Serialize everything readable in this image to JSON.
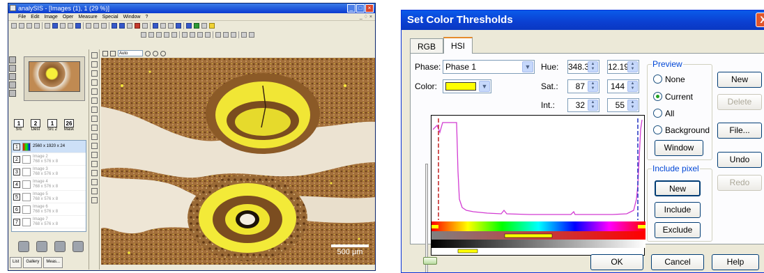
{
  "left_window": {
    "title": "analySIS - [Images (1), 1 (29 %)]",
    "title_buttons": [
      "_",
      "□",
      "×"
    ],
    "menu": [
      "File",
      "Edit",
      "Image",
      "Oper",
      "Measure",
      "Special",
      "Window",
      "?"
    ],
    "mdi_controls": "_ ♢ ×",
    "zoom_value": "Auto",
    "source_slots": [
      {
        "num": "1",
        "label": "Src"
      },
      {
        "num": "2",
        "label": "Dest"
      },
      {
        "num": "1",
        "label": "Src 2"
      },
      {
        "num": "26",
        "label": "Mask"
      }
    ],
    "images": [
      {
        "num": "1",
        "name": "",
        "size": "2560 x 1920 x 24",
        "color": true,
        "selected": true
      },
      {
        "num": "2",
        "name": "Image 2",
        "size": "768 x 576 x 8",
        "color": false,
        "selected": false
      },
      {
        "num": "3",
        "name": "Image 3",
        "size": "768 x 576 x 8",
        "color": false,
        "selected": false
      },
      {
        "num": "4",
        "name": "Image 4",
        "size": "768 x 576 x 8",
        "color": false,
        "selected": false
      },
      {
        "num": "5",
        "name": "Image 5",
        "size": "768 x 576 x 8",
        "color": false,
        "selected": false
      },
      {
        "num": "6",
        "name": "Image 6",
        "size": "768 x 576 x 8",
        "color": false,
        "selected": false
      },
      {
        "num": "7",
        "name": "Image 7",
        "size": "768 x 576 x 8",
        "color": false,
        "selected": false
      }
    ],
    "bottom_tabs": [
      "List",
      "Gallery",
      "Meas..."
    ],
    "scale_bar": "500 µm"
  },
  "dialog": {
    "title": "Set Color Thresholds",
    "close_label": "X",
    "tabs": [
      "RGB",
      "HSI"
    ],
    "active_tab": "HSI",
    "phase_label": "Phase:",
    "phase_value": "Phase 1",
    "color_label": "Color:",
    "color_swatch": "#ffff00",
    "hue_label": "Hue:",
    "hue_low": "348.3",
    "hue_high": "12.19",
    "sat_label": "Sat.:",
    "sat_low": "87",
    "sat_high": "144",
    "int_label": "Int.:",
    "int_low": "32",
    "int_high": "55",
    "preview_group": "Preview",
    "preview_options": [
      "None",
      "Current",
      "All",
      "Background"
    ],
    "preview_selected": "Current",
    "window_button": "Window",
    "include_group": "Include pixel",
    "include_buttons": [
      "New",
      "Include",
      "Exclude"
    ],
    "side_buttons": {
      "new": "New",
      "delete": "Delete",
      "file": "File...",
      "undo": "Undo",
      "redo": "Redo"
    },
    "footer_buttons": {
      "ok": "OK",
      "cancel": "Cancel",
      "help": "Help"
    },
    "accent_color": "#0a5bea",
    "curve_color": "#d23bd2"
  }
}
